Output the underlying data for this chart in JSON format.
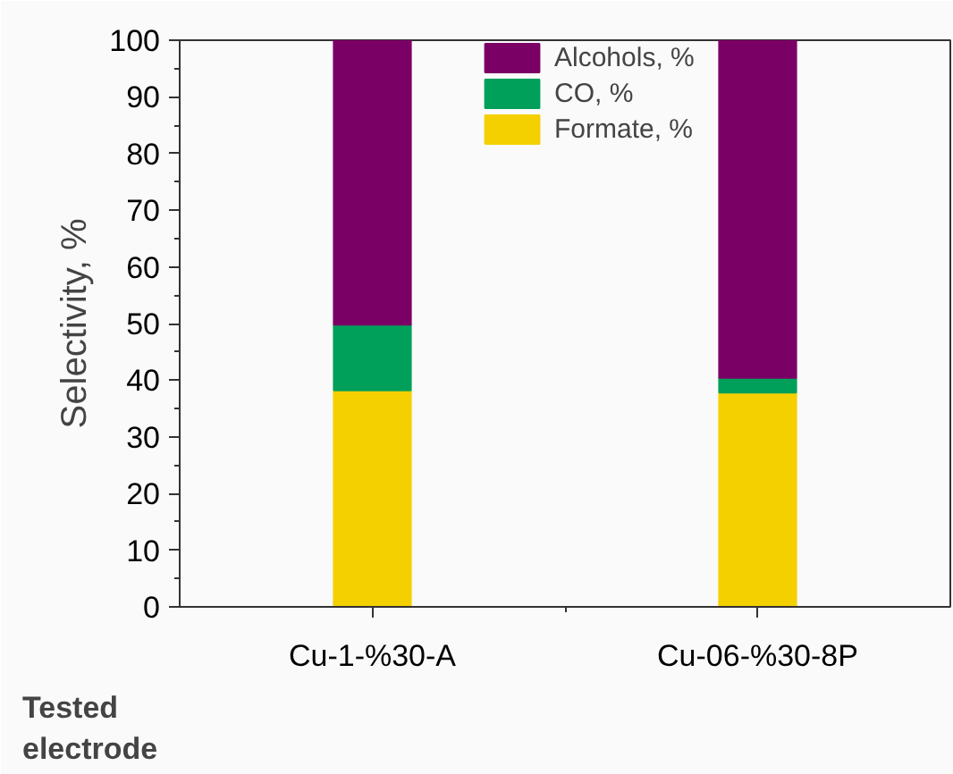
{
  "chart_data": {
    "type": "bar",
    "stacked": true,
    "ylabel": "Selectivity, %",
    "xlabel": "Tested electrode",
    "categories": [
      "Cu-1-%30-A",
      "Cu-06-%30-8P"
    ],
    "series": [
      {
        "name": "Formate, %",
        "color": "#f5d000",
        "values": [
          38.2,
          37.8
        ]
      },
      {
        "name": "CO, %",
        "color": "#00a05a",
        "values": [
          11.6,
          2.6
        ]
      },
      {
        "name": "Alcohols, %",
        "color": "#7b0066",
        "values": [
          50.2,
          59.6
        ]
      }
    ],
    "ylim": [
      0,
      100
    ],
    "yticks": [
      0,
      10,
      20,
      30,
      40,
      50,
      60,
      70,
      80,
      90,
      100
    ],
    "grid": false,
    "legend": "top"
  }
}
